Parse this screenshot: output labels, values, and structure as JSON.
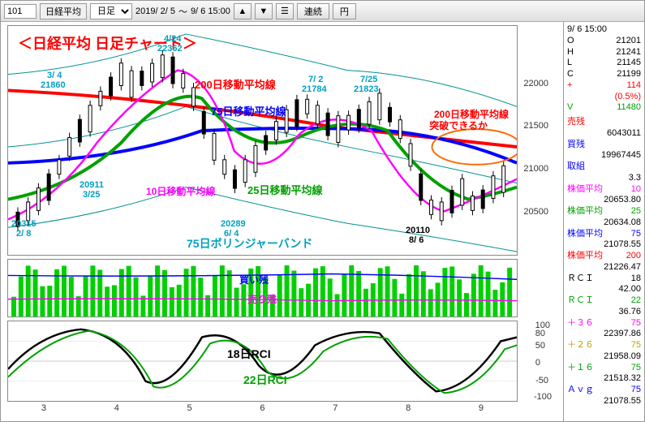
{
  "toolbar": {
    "code": "101",
    "name": "日経平均",
    "timeframe": "日足",
    "range_from": "2019/ 2/ 5",
    "range_to": "9/ 6 15:00",
    "btn_cont": "連続",
    "btn_yen": "円"
  },
  "side": {
    "datetime": "9/ 6 15:00",
    "O_label": "O",
    "O": "21201",
    "H_label": "H",
    "H": "21241",
    "L_label": "L",
    "L": "21145",
    "C_label": "C",
    "C": "21199",
    "chg_label": "+",
    "chg": "114",
    "pct": "(0.5%)",
    "V_label": "V",
    "V": "11480",
    "sell_label": "売残",
    "sell": "6043011",
    "buy_label": "買残",
    "buy": "19967445",
    "ratio_label": "取組",
    "ratio": "3.3",
    "ma10_label": "株価平均",
    "ma10_p": "10",
    "ma10": "20653.80",
    "ma25_label": "株価平均",
    "ma25_p": "25",
    "ma25": "20634.08",
    "ma75_label": "株価平均",
    "ma75_p": "75",
    "ma75": "21078.55",
    "ma200_label": "株価平均",
    "ma200_p": "200",
    "ma200": "21226.47",
    "rci18_label": "ＲＣＩ",
    "rci18_p": "18",
    "rci18": "42.00",
    "rci22_label": "ＲＣＩ",
    "rci22_p": "22",
    "rci22": "36.76",
    "p36_label": "＋３６",
    "p36_p": "75",
    "p36": "22397.86",
    "p26_label": "＋２６",
    "p26_p": "75",
    "p26": "21958.09",
    "p16_label": "＋１６",
    "p16_p": "75",
    "p16": "21518.32",
    "avg_label": "Ａｖｇ",
    "avg_p": "75",
    "avg": "21078.55"
  },
  "chart": {
    "title": "＜日経平均  日足チャート＞",
    "ylim": [
      20000,
      22500
    ],
    "yticks": [
      "20500",
      "21000",
      "21500",
      "22000"
    ],
    "xticks": [
      "3",
      "4",
      "5",
      "6",
      "7",
      "8",
      "9"
    ],
    "colors": {
      "ma10": "#ff00ff",
      "ma25": "#00a000",
      "ma75": "#0000ff",
      "ma200": "#ff0000",
      "bb": "#009090",
      "candle_up": "#ffffff",
      "candle_dn": "#000000",
      "rci18": "#000000",
      "rci22": "#00a000",
      "vol": "#00d000",
      "buy_line": "#0000ff",
      "sell_line": "#ff00ff"
    },
    "annotations": {
      "ma200": "200日移動平均線",
      "ma75": "75日移動平均線",
      "ma25": "25日移動平均線",
      "ma10": "10日移動平均線",
      "bb": "75日ボリンジャーバンド",
      "focus1": "200日移動平均線",
      "focus2": "突破できるか",
      "vol_buy": "買い残",
      "vol_sell": "売り残",
      "rci18": "18日RCI",
      "rci22": "22日RCI",
      "p1": "20315",
      "d1": "2/ 8",
      "p2": "20911",
      "d2": "3/25",
      "p3": "3/ 4",
      "p3v": "21860",
      "p4": "4/24",
      "p4v": "22362",
      "p5": "20289",
      "d5": "6/ 4",
      "p6": "7/ 2",
      "p6v": "21784",
      "p7": "7/25",
      "p7v": "21823",
      "p8": "20110",
      "d8": "8/ 6"
    },
    "rci_ticks": [
      "100",
      "80",
      "50",
      "0",
      "-50",
      "-100"
    ]
  }
}
